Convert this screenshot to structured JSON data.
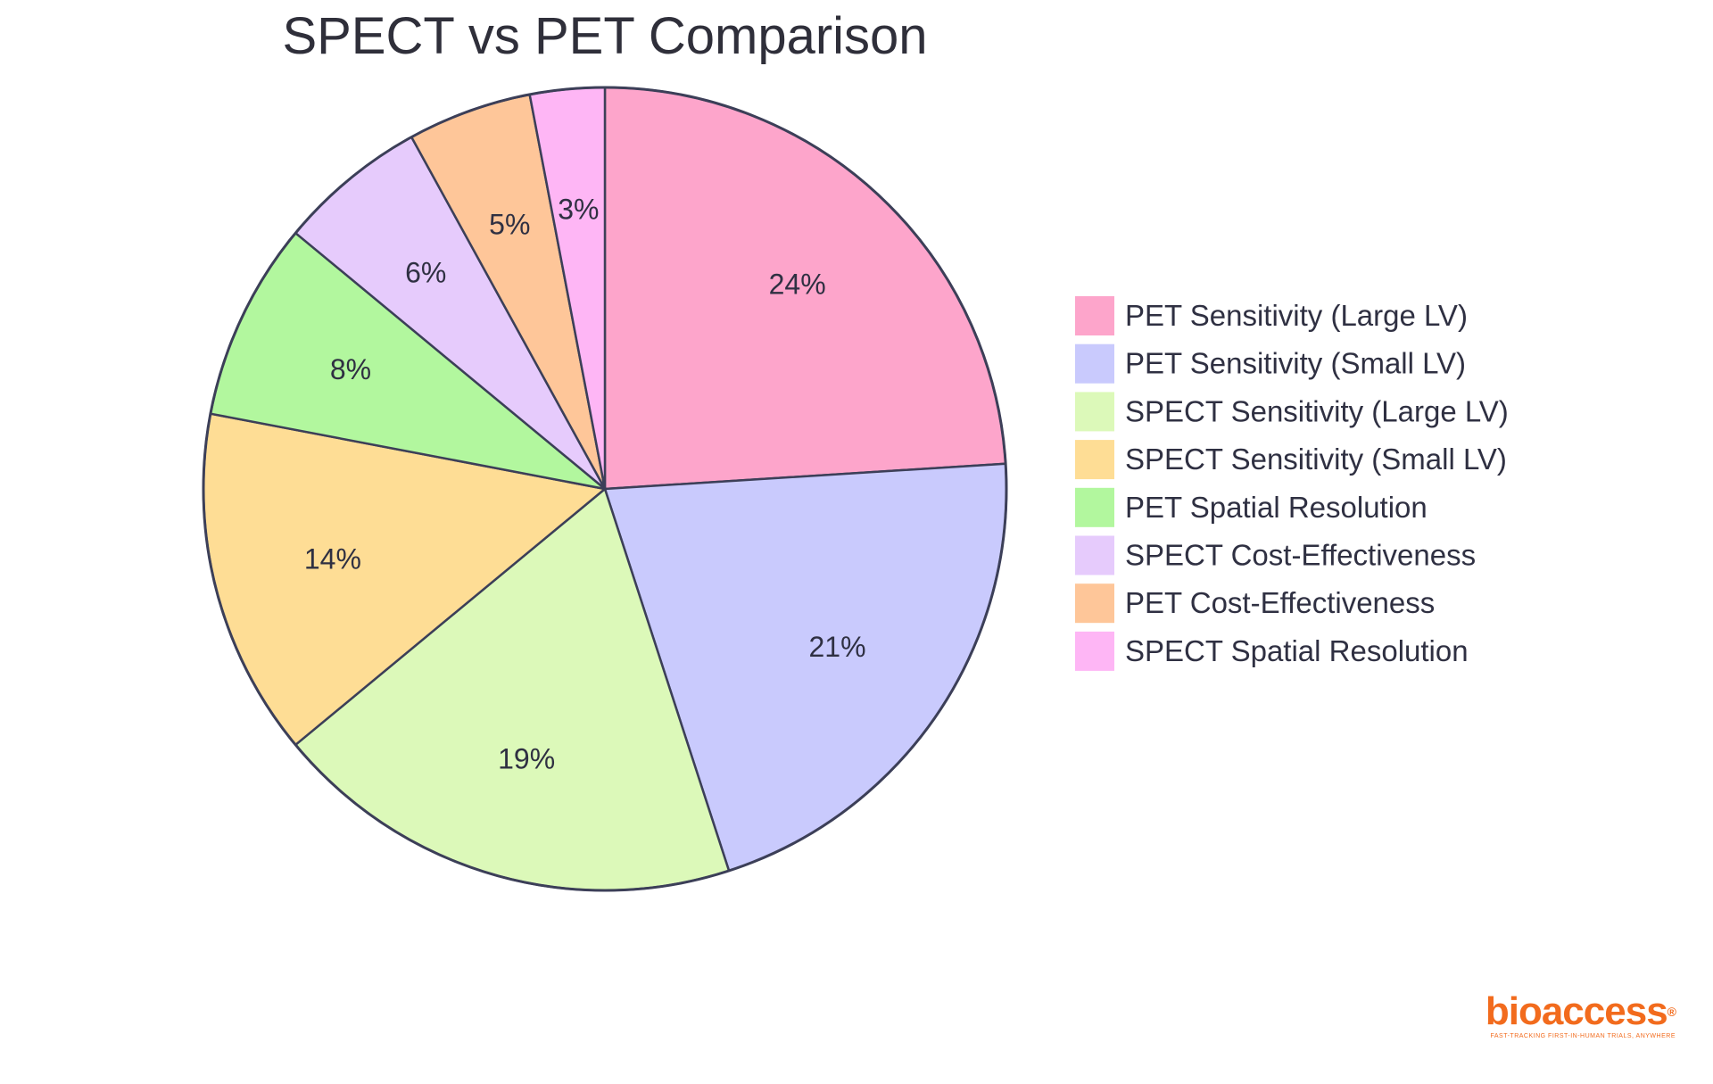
{
  "chart_data": {
    "type": "pie",
    "title": "SPECT vs PET Comparison",
    "slices": [
      {
        "label": "PET Sensitivity (Large LV)",
        "value": 24,
        "display": "24%",
        "color": "#fda5cb"
      },
      {
        "label": "PET Sensitivity (Small LV)",
        "value": 21,
        "display": "21%",
        "color": "#c9cafd"
      },
      {
        "label": "SPECT Sensitivity (Large LV)",
        "value": 19,
        "display": "19%",
        "color": "#dcf9b9"
      },
      {
        "label": "SPECT Sensitivity (Small LV)",
        "value": 14,
        "display": "14%",
        "color": "#fedd95"
      },
      {
        "label": "PET Spatial Resolution",
        "value": 8,
        "display": "8%",
        "color": "#b2f79e"
      },
      {
        "label": "SPECT Cost-Effectiveness",
        "value": 6,
        "display": "6%",
        "color": "#e6cbfc"
      },
      {
        "label": "PET Cost-Effectiveness",
        "value": 5,
        "display": "5%",
        "color": "#fec699"
      },
      {
        "label": "SPECT Spatial Resolution",
        "value": 3,
        "display": "3%",
        "color": "#feb6f5"
      }
    ],
    "start_angle_deg": 0,
    "direction": "clockwise",
    "legend_position": "right"
  },
  "brand": {
    "name": "bioaccess",
    "registered": "®",
    "tagline": "FAST-TRACKING FIRST-IN-HUMAN TRIALS, ANYWHERE"
  },
  "colors": {
    "outline": "#3c3f58",
    "brand": "#f26b1d"
  }
}
